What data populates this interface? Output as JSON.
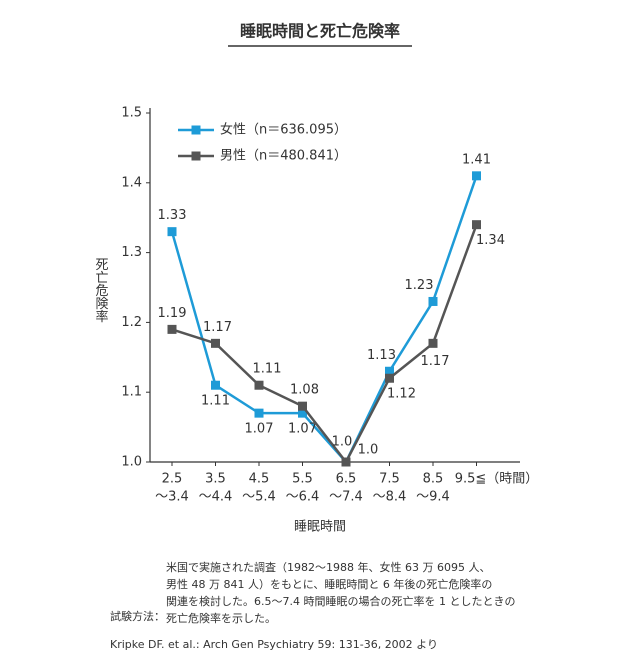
{
  "chart_data": {
    "type": "line",
    "title": "睡眠時間と死亡危険率",
    "y_label": "死亡危険率",
    "x_label": "睡眠時間",
    "categories": [
      [
        "2.5",
        "〜3.4"
      ],
      [
        "3.5",
        "〜4.4"
      ],
      [
        "4.5",
        "〜5.4"
      ],
      [
        "5.5",
        "〜6.4"
      ],
      [
        "6.5",
        "〜7.4"
      ],
      [
        "7.5",
        "〜8.4"
      ],
      [
        "8.5",
        "〜9.4"
      ],
      [
        "9.5≦（時間）"
      ]
    ],
    "series": [
      {
        "name": "女性（n＝636.095）",
        "color": "#1e9bd7",
        "values": [
          1.33,
          1.11,
          1.07,
          1.07,
          1.0,
          1.13,
          1.23,
          1.41
        ],
        "value_labels": [
          "1.33",
          "1.11",
          "1.07",
          "1.07",
          "1.0",
          "1.13",
          "1.23",
          "1.41"
        ]
      },
      {
        "name": "男性（n＝480.841）",
        "color": "#555555",
        "values": [
          1.19,
          1.17,
          1.11,
          1.08,
          1.0,
          1.12,
          1.17,
          1.34
        ],
        "value_labels": [
          "1.19",
          "1.17",
          "1.11",
          "1.08",
          "1.0",
          "1.12",
          "1.17",
          "1.34"
        ]
      }
    ],
    "ylim": [
      1.0,
      1.5
    ],
    "yticks": [
      {
        "value": 1.0,
        "label": "1.0"
      },
      1.1,
      1.2,
      1.3,
      1.4,
      1.5
    ],
    "legend": "upper left",
    "notes_label": "試験方法：",
    "notes": [
      "米国で実施された調査（1982〜1988 年、女性 63 万 6095 人、",
      "男性 48 万 841 人）をもとに、睡眠時間と 6 年後の死亡危険率の",
      "関連を検討した。6.5〜7.4 時間睡眠の場合の死亡率を 1 としたときの",
      "死亡危険率を示した。"
    ],
    "source": "Kripke DF. et al.: Arch Gen Psychiatry 59: 131-36, 2002 より"
  }
}
